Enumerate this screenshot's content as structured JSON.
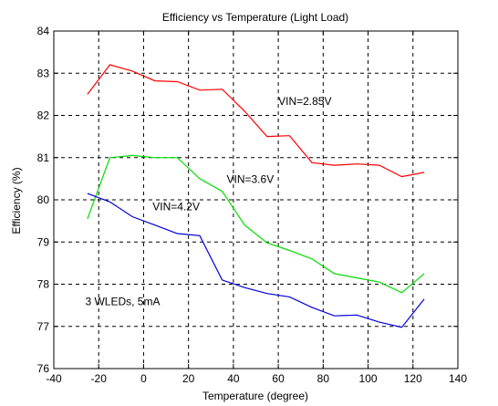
{
  "chart_data": {
    "type": "line",
    "title": "Efficiency vs Temperature (Light Load)",
    "xlabel": "Temperature (degree)",
    "ylabel": "Efficiency (%)",
    "xlim": [
      -40,
      140
    ],
    "ylim": [
      76,
      84
    ],
    "xticks": [
      -40,
      -20,
      0,
      20,
      40,
      60,
      80,
      100,
      120,
      140
    ],
    "yticks": [
      76,
      77,
      78,
      79,
      80,
      81,
      82,
      83,
      84
    ],
    "grid": true,
    "series": [
      {
        "name": "VIN=2.85V",
        "color": "#ff0000",
        "x": [
          -25,
          -15,
          -5,
          5,
          15,
          25,
          35,
          45,
          55,
          65,
          75,
          85,
          95,
          105,
          115,
          125
        ],
        "y": [
          82.5,
          83.2,
          83.05,
          82.82,
          82.8,
          82.6,
          82.62,
          82.1,
          81.5,
          81.52,
          80.88,
          80.82,
          80.85,
          80.82,
          80.55,
          80.65
        ]
      },
      {
        "name": "VIN=3.6V",
        "color": "#00dd00",
        "x": [
          -25,
          -15,
          -5,
          5,
          15,
          25,
          35,
          45,
          55,
          65,
          75,
          85,
          95,
          105,
          115,
          125
        ],
        "y": [
          79.55,
          81.0,
          81.05,
          81.0,
          81.0,
          80.5,
          80.2,
          79.4,
          78.98,
          78.8,
          78.6,
          78.25,
          78.15,
          78.05,
          77.8,
          78.25
        ]
      },
      {
        "name": "VIN=4.2V",
        "color": "#0000dd",
        "x": [
          -25,
          -15,
          -5,
          5,
          15,
          25,
          35,
          45,
          55,
          65,
          75,
          85,
          95,
          105,
          115,
          125
        ],
        "y": [
          80.15,
          79.95,
          79.6,
          79.4,
          79.2,
          79.15,
          78.1,
          77.92,
          77.78,
          77.7,
          77.45,
          77.25,
          77.27,
          77.1,
          76.98,
          77.65
        ]
      }
    ],
    "annotations": [
      {
        "text": "VIN=2.85V",
        "x": 60,
        "y": 82.25
      },
      {
        "text": "VIN=3.6V",
        "x": 37,
        "y": 80.4
      },
      {
        "text": "VIN=4.2V",
        "x": 4,
        "y": 79.75
      },
      {
        "text": "3 WLEDs, 5mA",
        "x": -26,
        "y": 77.5
      }
    ]
  }
}
